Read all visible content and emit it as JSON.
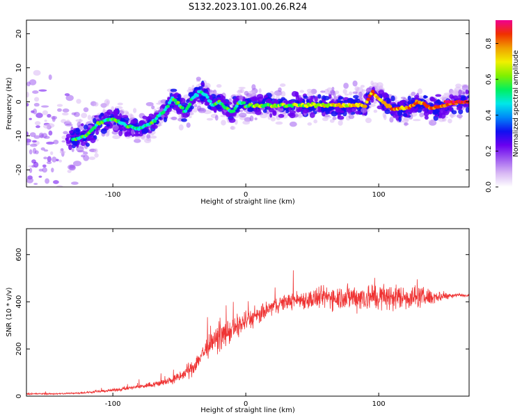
{
  "figure_title": "S132.2023.101.00.26.R24",
  "colors": {
    "trace": "#ef3333",
    "colormap": [
      "#ffffff",
      "#d8b8f4",
      "#a05cf0",
      "#6a00f0",
      "#1010f0",
      "#0088f8",
      "#00e8e8",
      "#00f060",
      "#80f000",
      "#f0f000",
      "#f0a000",
      "#f03000",
      "#f00090"
    ]
  },
  "chart_data": [
    {
      "type": "heatmap",
      "xlabel": "Height of straight line (km)",
      "ylabel": "Frequency (Hz)",
      "xlim": [
        -165,
        168
      ],
      "ylim": [
        -25,
        24
      ],
      "xticks": [
        -100,
        0,
        100
      ],
      "yticks": [
        -20,
        -10,
        0,
        10,
        20
      ],
      "colorbar": {
        "label": "Normalized spectral amplitude",
        "range": [
          0,
          0.93
        ],
        "ticks": [
          0.0,
          0.2,
          0.4,
          0.6,
          0.8
        ]
      },
      "ridge": {
        "x": [
          -165,
          -140,
          -130,
          -120,
          -110,
          -100,
          -90,
          -80,
          -70,
          -60,
          -55,
          -50,
          -45,
          -40,
          -35,
          -30,
          -25,
          -20,
          -15,
          -10,
          -5,
          0,
          10,
          20,
          30,
          40,
          50,
          60,
          70,
          80,
          90,
          95,
          100,
          110,
          120,
          130,
          140,
          150,
          160,
          168
        ],
        "y": [
          -10,
          -11,
          -11,
          -10,
          -6,
          -5,
          -7,
          -8,
          -6,
          -2,
          1,
          -1,
          -3,
          1,
          3,
          2,
          -1,
          0,
          -2,
          -3,
          0,
          -1,
          -1,
          -1,
          -1,
          -1,
          -1,
          -1,
          -1,
          -1,
          -1,
          3,
          1,
          -2,
          -2,
          0,
          -2,
          -1,
          0,
          0
        ]
      }
    },
    {
      "type": "line",
      "xlabel": "Height of straight line (km)",
      "ylabel": "SNR (10 * v/v)",
      "xlim": [
        -165,
        168
      ],
      "ylim": [
        0,
        710
      ],
      "xticks": [
        -100,
        0,
        100
      ],
      "yticks": [
        0,
        200,
        400,
        600
      ],
      "series": [
        {
          "x": [
            -165,
            -140,
            -120,
            -100,
            -80,
            -60,
            -50,
            -40,
            -30,
            -20,
            -10,
            0,
            10,
            20,
            30,
            40,
            50,
            60,
            70,
            80,
            90,
            100,
            110,
            120,
            130,
            140,
            150,
            160,
            168
          ],
          "y": [
            10,
            10,
            15,
            25,
            40,
            60,
            80,
            120,
            200,
            250,
            280,
            320,
            340,
            380,
            400,
            410,
            410,
            420,
            420,
            420,
            420,
            420,
            420,
            420,
            420,
            420,
            425,
            430,
            425
          ],
          "noise_amplitude": [
            4,
            4,
            5,
            8,
            12,
            20,
            30,
            45,
            60,
            70,
            70,
            60,
            50,
            45,
            45,
            50,
            60,
            65,
            70,
            75,
            80,
            80,
            75,
            70,
            60,
            45,
            20,
            10,
            8
          ]
        }
      ]
    }
  ]
}
